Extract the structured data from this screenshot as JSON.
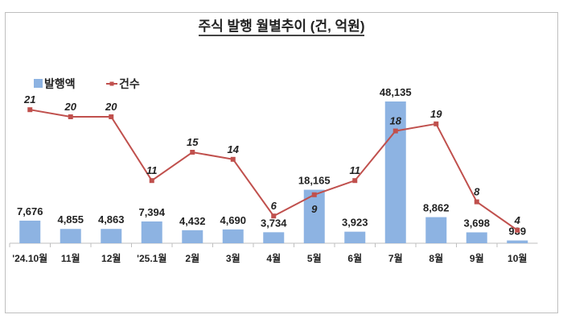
{
  "chart_data": {
    "type": "bar+line",
    "title": "주식 발행 월별추이 (건, 억원)",
    "categories": [
      "'24.10월",
      "11월",
      "12월",
      "'25.1월",
      "2월",
      "3월",
      "4월",
      "5월",
      "6월",
      "7월",
      "8월",
      "9월",
      "10월"
    ],
    "series": [
      {
        "name": "발행액",
        "type": "bar",
        "color": "#8db3e2",
        "values": [
          7676,
          4855,
          4863,
          7394,
          4432,
          4690,
          3734,
          18165,
          3923,
          48135,
          8862,
          3698,
          939
        ],
        "labels": [
          "7,676",
          "4,855",
          "4,863",
          "7,394",
          "4,432",
          "4,690",
          "3,734",
          "18,165",
          "3,923",
          "48,135",
          "8,862",
          "3,698",
          "939"
        ]
      },
      {
        "name": "건수",
        "type": "line",
        "color": "#c0504d",
        "values": [
          21,
          20,
          20,
          11,
          15,
          14,
          6,
          9,
          11,
          18,
          19,
          8,
          4
        ]
      }
    ],
    "legend": "top-left",
    "grid": false
  }
}
